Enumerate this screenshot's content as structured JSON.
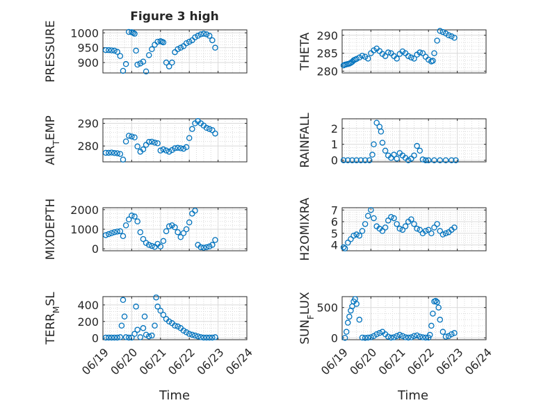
{
  "figure": {
    "title": "Figure 3 high",
    "xlabel": "Time",
    "x_tick_labels": [
      "06/19",
      "06/20",
      "06/21",
      "06/22",
      "06/23",
      "06/24"
    ],
    "x_range": [
      "06/19",
      "06/24"
    ],
    "marker_color": "#0072BD",
    "grid_color": "#d9d9d9"
  },
  "chart_data": [
    {
      "type": "scatter",
      "ylabel": "PRESSURE",
      "yticks": [
        900,
        950,
        1000
      ],
      "ylim": [
        865,
        1010
      ],
      "grid": true,
      "x": [
        0.1,
        0.2,
        0.3,
        0.4,
        0.5,
        0.6,
        0.7,
        0.8,
        0.9,
        1.0,
        1.05,
        1.1,
        1.15,
        1.2,
        1.3,
        1.4,
        1.5,
        1.6,
        1.7,
        1.8,
        1.9,
        2.0,
        2.05,
        2.1,
        2.2,
        2.3,
        2.4,
        2.5,
        2.6,
        2.7,
        2.8,
        2.9,
        3.0,
        3.1,
        3.2,
        3.3,
        3.4,
        3.5,
        3.6,
        3.7,
        3.8,
        3.9
      ],
      "y": [
        942,
        942,
        941,
        940,
        936,
        922,
        872,
        895,
        1003,
        1002,
        1000,
        997,
        940,
        893,
        897,
        903,
        870,
        925,
        945,
        960,
        970,
        972,
        970,
        968,
        900,
        887,
        900,
        935,
        945,
        950,
        955,
        965,
        970,
        975,
        985,
        990,
        995,
        997,
        995,
        990,
        975,
        950
      ]
    },
    {
      "type": "scatter",
      "ylabel": "THETA",
      "yticks": [
        280,
        285,
        290
      ],
      "ylim": [
        279.5,
        291.5
      ],
      "grid": true,
      "x": [
        0.05,
        0.1,
        0.15,
        0.2,
        0.25,
        0.3,
        0.35,
        0.4,
        0.45,
        0.5,
        0.6,
        0.7,
        0.8,
        0.9,
        1.0,
        1.1,
        1.2,
        1.3,
        1.4,
        1.5,
        1.6,
        1.7,
        1.8,
        1.9,
        2.0,
        2.1,
        2.2,
        2.3,
        2.4,
        2.5,
        2.6,
        2.7,
        2.8,
        2.9,
        3.0,
        3.1,
        3.15,
        3.2,
        3.3,
        3.4,
        3.5,
        3.6,
        3.7,
        3.8,
        3.9
      ],
      "y": [
        281.6,
        281.8,
        281.9,
        282.0,
        282.1,
        282.3,
        282.6,
        283.0,
        283.2,
        283.4,
        283.8,
        284.3,
        284.0,
        283.5,
        285.0,
        285.8,
        286.3,
        285.6,
        284.8,
        284.2,
        285.2,
        285.0,
        284.2,
        283.5,
        284.8,
        285.5,
        285.0,
        284.2,
        283.8,
        283.5,
        284.6,
        285.2,
        285.0,
        284.0,
        283.2,
        282.7,
        282.9,
        285.0,
        288.5,
        291.2,
        290.9,
        290.5,
        290.0,
        289.7,
        289.3
      ]
    },
    {
      "type": "scatter",
      "ylabel": "AIR",
      "ylabel_sub": "T",
      "ylabel_rest": "EMP",
      "yticks": [
        280,
        290
      ],
      "ylim": [
        273,
        292
      ],
      "grid": true,
      "x": [
        0.1,
        0.2,
        0.3,
        0.4,
        0.5,
        0.6,
        0.7,
        0.8,
        0.9,
        1.0,
        1.1,
        1.2,
        1.3,
        1.4,
        1.5,
        1.6,
        1.7,
        1.8,
        1.9,
        2.0,
        2.1,
        2.2,
        2.3,
        2.4,
        2.5,
        2.6,
        2.7,
        2.8,
        2.9,
        3.0,
        3.1,
        3.2,
        3.3,
        3.4,
        3.5,
        3.6,
        3.7,
        3.8,
        3.9
      ],
      "y": [
        277.0,
        277.0,
        277.1,
        276.9,
        276.8,
        276.5,
        274.0,
        282.0,
        284.5,
        284.2,
        283.8,
        279.8,
        277.5,
        278.5,
        280.5,
        281.8,
        281.9,
        281.5,
        281.2,
        278.0,
        278.5,
        278.0,
        277.5,
        278.2,
        279.0,
        279.2,
        279.0,
        278.8,
        279.5,
        283.5,
        287.5,
        290.0,
        291.0,
        290.0,
        289.0,
        288.0,
        287.5,
        287.0,
        285.5
      ]
    },
    {
      "type": "scatter",
      "ylabel": "RAINFALL",
      "yticks": [
        0,
        1,
        2
      ],
      "ylim": [
        -0.1,
        2.6
      ],
      "grid": true,
      "x": [
        0.05,
        0.2,
        0.35,
        0.5,
        0.65,
        0.8,
        0.95,
        1.05,
        1.1,
        1.2,
        1.3,
        1.35,
        1.4,
        1.5,
        1.6,
        1.7,
        1.8,
        1.9,
        2.0,
        2.1,
        2.2,
        2.3,
        2.4,
        2.5,
        2.6,
        2.7,
        2.8,
        2.9,
        3.0,
        3.2,
        3.4,
        3.6,
        3.8,
        3.95
      ],
      "y": [
        0,
        0,
        0,
        0,
        0,
        0,
        0,
        0.35,
        1.0,
        2.35,
        2.1,
        1.8,
        1.1,
        0.6,
        0.3,
        0.15,
        0.35,
        0.1,
        0.45,
        0.3,
        0.15,
        0,
        0.1,
        0.3,
        0.9,
        0.6,
        0.05,
        0,
        0,
        0,
        0,
        0,
        0,
        0
      ]
    },
    {
      "type": "scatter",
      "ylabel": "MIXDEPTH",
      "yticks": [
        0,
        1000,
        2000
      ],
      "ylim": [
        -100,
        2100
      ],
      "grid": true,
      "x": [
        0.1,
        0.2,
        0.3,
        0.4,
        0.5,
        0.6,
        0.7,
        0.8,
        0.9,
        1.0,
        1.1,
        1.2,
        1.3,
        1.4,
        1.5,
        1.6,
        1.7,
        1.8,
        1.9,
        2.0,
        2.1,
        2.2,
        2.3,
        2.4,
        2.5,
        2.6,
        2.7,
        2.8,
        2.9,
        3.0,
        3.1,
        3.2,
        3.3,
        3.4,
        3.5,
        3.6,
        3.7,
        3.8,
        3.9
      ],
      "y": [
        700,
        750,
        800,
        850,
        880,
        900,
        650,
        1200,
        1500,
        1700,
        1650,
        1400,
        850,
        500,
        300,
        200,
        150,
        100,
        250,
        120,
        400,
        900,
        1150,
        1200,
        1100,
        850,
        600,
        800,
        1000,
        1350,
        1800,
        1950,
        200,
        80,
        60,
        80,
        120,
        200,
        450
      ]
    },
    {
      "type": "scatter",
      "ylabel": "H2OMIXRA",
      "yticks": [
        4,
        5,
        6,
        7
      ],
      "ylim": [
        3.5,
        7.2
      ],
      "grid": true,
      "x": [
        0.05,
        0.1,
        0.2,
        0.3,
        0.4,
        0.5,
        0.6,
        0.7,
        0.8,
        0.9,
        1.0,
        1.1,
        1.2,
        1.3,
        1.4,
        1.5,
        1.6,
        1.7,
        1.8,
        1.9,
        2.0,
        2.1,
        2.2,
        2.3,
        2.4,
        2.5,
        2.6,
        2.7,
        2.8,
        2.9,
        3.0,
        3.1,
        3.2,
        3.3,
        3.4,
        3.5,
        3.6,
        3.7,
        3.8,
        3.9
      ],
      "y": [
        3.8,
        3.7,
        4.2,
        4.5,
        4.8,
        4.9,
        4.8,
        5.2,
        5.8,
        6.5,
        7.0,
        6.3,
        5.6,
        5.4,
        5.2,
        5.5,
        6.1,
        6.4,
        6.3,
        5.8,
        5.4,
        5.3,
        5.6,
        6.0,
        6.2,
        5.8,
        5.4,
        5.3,
        5.0,
        5.2,
        5.3,
        5.0,
        5.5,
        5.8,
        5.2,
        4.9,
        5.0,
        5.1,
        5.3,
        5.5
      ]
    },
    {
      "type": "scatter",
      "ylabel": "TERR",
      "ylabel_sub": "M",
      "ylabel_rest": "SL",
      "yticks": [
        0,
        200,
        400
      ],
      "ylim": [
        -20,
        500
      ],
      "grid": true,
      "x": [
        0.1,
        0.2,
        0.3,
        0.4,
        0.5,
        0.6,
        0.65,
        0.7,
        0.75,
        0.8,
        0.9,
        1.0,
        1.1,
        1.15,
        1.2,
        1.3,
        1.4,
        1.45,
        1.5,
        1.6,
        1.7,
        1.8,
        1.85,
        1.9,
        2.0,
        2.1,
        2.2,
        2.3,
        2.4,
        2.5,
        2.6,
        2.7,
        2.8,
        2.9,
        3.0,
        3.1,
        3.2,
        3.3,
        3.4,
        3.5,
        3.6,
        3.7,
        3.8,
        3.9
      ],
      "y": [
        5,
        5,
        5,
        5,
        5,
        10,
        150,
        460,
        260,
        10,
        5,
        5,
        50,
        380,
        100,
        10,
        120,
        260,
        40,
        20,
        30,
        150,
        490,
        380,
        330,
        280,
        230,
        200,
        180,
        150,
        140,
        120,
        90,
        70,
        50,
        40,
        30,
        20,
        10,
        5,
        5,
        5,
        5,
        10
      ]
    },
    {
      "type": "scatter",
      "ylabel": "SUN",
      "ylabel_sub": "F",
      "ylabel_rest": "LUX",
      "yticks": [
        0,
        500
      ],
      "ylim": [
        -30,
        680
      ],
      "grid": true,
      "x": [
        0.1,
        0.15,
        0.2,
        0.25,
        0.3,
        0.35,
        0.4,
        0.45,
        0.5,
        0.6,
        0.7,
        0.8,
        0.9,
        1.0,
        1.1,
        1.2,
        1.3,
        1.4,
        1.5,
        1.6,
        1.7,
        1.8,
        1.9,
        2.0,
        2.1,
        2.2,
        2.3,
        2.4,
        2.5,
        2.6,
        2.7,
        2.8,
        2.9,
        3.0,
        3.05,
        3.1,
        3.15,
        3.2,
        3.25,
        3.3,
        3.35,
        3.4,
        3.5,
        3.6,
        3.7,
        3.8,
        3.9
      ],
      "y": [
        0,
        100,
        250,
        350,
        450,
        520,
        600,
        640,
        560,
        300,
        5,
        0,
        5,
        10,
        30,
        60,
        80,
        100,
        60,
        20,
        5,
        10,
        30,
        50,
        30,
        10,
        5,
        10,
        30,
        40,
        20,
        10,
        5,
        5,
        50,
        200,
        400,
        600,
        610,
        590,
        500,
        300,
        100,
        20,
        30,
        60,
        80
      ]
    }
  ]
}
